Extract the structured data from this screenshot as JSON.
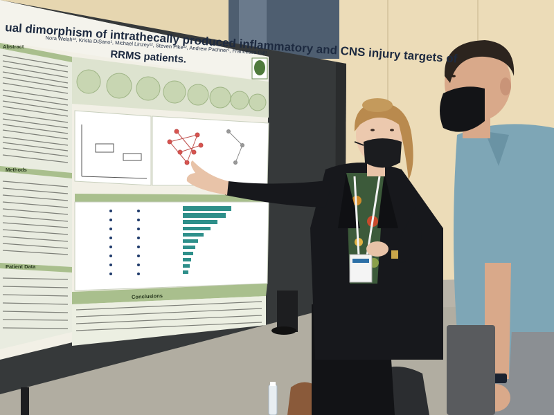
{
  "poster": {
    "title_line1": "ual dimorphism of intrathecally produced inflammatory and CNS injury targets of",
    "title_line2": "RRMS patients.",
    "authors": "Nora Welsh¹², Krista DiSano¹, Michael Linzey¹², Steven Pike¹², Andrew Pachner¹, Francesca Gill¹",
    "sections": {
      "abstract": "Abstract",
      "methods": "Methods",
      "patient_data": "Patient Data",
      "conclusions": "Conclusions"
    }
  },
  "colors": {
    "poster_bg": "#f2f0e6",
    "poster_header_band": "#c9d6b4",
    "accent_green": "#7a9a5e",
    "chart_teal": "#2e8f8a",
    "board": "#3a3e3c",
    "wall": "#e9d9b4",
    "floor": "#bdb8ae",
    "jacket": "#15161a",
    "shirt": "#7fa7b8"
  }
}
